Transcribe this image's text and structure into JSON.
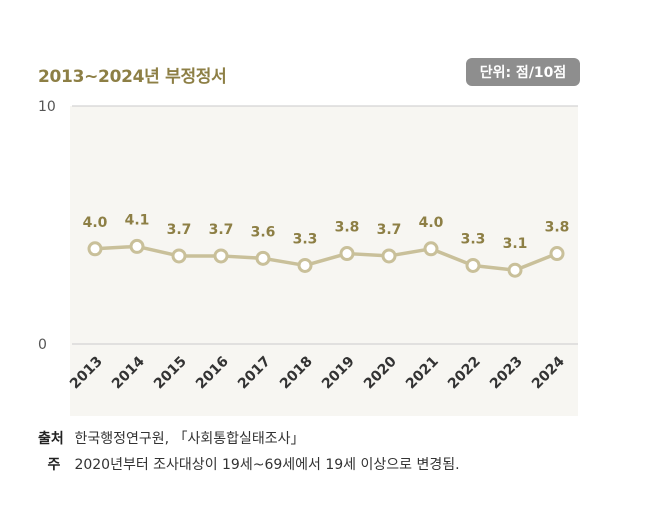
{
  "chart_data": {
    "type": "line",
    "title": "2013~2024년 부정정서",
    "unit_label": "단위: 점/10점",
    "categories": [
      "2013",
      "2014",
      "2015",
      "2016",
      "2017",
      "2018",
      "2019",
      "2020",
      "2021",
      "2022",
      "2023",
      "2024"
    ],
    "series": [
      {
        "values": [
          4.0,
          4.1,
          3.7,
          3.7,
          3.6,
          3.3,
          3.8,
          3.7,
          4.0,
          3.3,
          3.1,
          3.8
        ]
      }
    ],
    "value_labels": [
      "4.0",
      "4.1",
      "3.7",
      "3.7",
      "3.6",
      "3.3",
      "3.8",
      "3.7",
      "4.0",
      "3.3",
      "3.1",
      "3.8"
    ],
    "ylim": [
      0,
      10
    ],
    "y_ticks": [
      "0",
      "10"
    ],
    "grid": true,
    "line_color": "#c9c09a",
    "label_color": "#8d7f45"
  },
  "footer": {
    "source_key": "출처",
    "source_text": "한국행정연구원, 「사회통합실태조사」",
    "note_key": "주",
    "note_text": "2020년부터 조사대상이 19세~69세에서 19세 이상으로 변경됨."
  }
}
